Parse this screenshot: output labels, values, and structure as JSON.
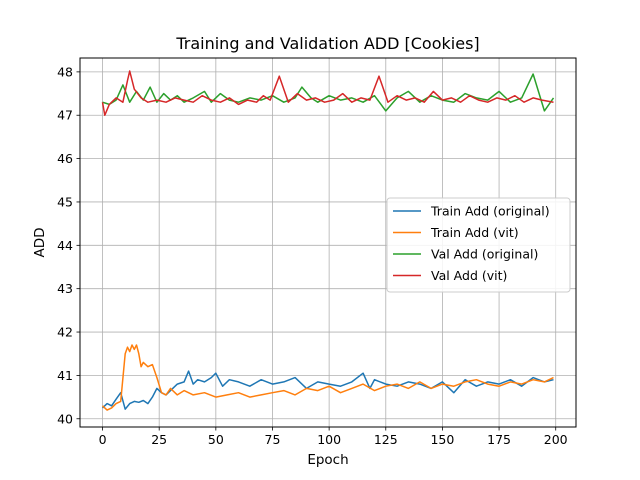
{
  "chart_data": {
    "type": "line",
    "title": "Training and Validation ADD [Cookies]",
    "xlabel": "Epoch",
    "ylabel": "ADD",
    "xlim": [
      -9.95,
      208.95
    ],
    "ylim": [
      39.81,
      48.32
    ],
    "xticks": [
      0,
      25,
      50,
      75,
      100,
      125,
      150,
      175,
      200
    ],
    "yticks": [
      40,
      41,
      42,
      43,
      44,
      45,
      46,
      47,
      48
    ],
    "grid": true,
    "legend_position": "center-right",
    "series": [
      {
        "name": "Train Add (original)",
        "color": "#1f77b4",
        "x": [
          0,
          2,
          4,
          6,
          8,
          10,
          12,
          14,
          16,
          18,
          20,
          22,
          24,
          26,
          28,
          30,
          33,
          36,
          38,
          40,
          42,
          45,
          48,
          50,
          53,
          56,
          60,
          65,
          70,
          75,
          80,
          85,
          90,
          95,
          100,
          105,
          110,
          115,
          118,
          120,
          125,
          130,
          135,
          140,
          145,
          150,
          155,
          160,
          165,
          170,
          175,
          180,
          185,
          190,
          195,
          199
        ],
        "y": [
          40.25,
          40.35,
          40.3,
          40.45,
          40.6,
          40.22,
          40.35,
          40.4,
          40.38,
          40.42,
          40.35,
          40.5,
          40.7,
          40.6,
          40.55,
          40.65,
          40.8,
          40.85,
          41.1,
          40.8,
          40.9,
          40.85,
          40.95,
          41.05,
          40.75,
          40.9,
          40.85,
          40.75,
          40.9,
          40.8,
          40.85,
          40.95,
          40.7,
          40.85,
          40.8,
          40.75,
          40.85,
          41.05,
          40.7,
          40.9,
          40.8,
          40.75,
          40.85,
          40.8,
          40.7,
          40.85,
          40.6,
          40.9,
          40.75,
          40.85,
          40.8,
          40.9,
          40.75,
          40.95,
          40.85,
          40.9
        ]
      },
      {
        "name": "Train Add (vit)",
        "color": "#ff7f0e",
        "x": [
          0,
          2,
          4,
          6,
          8,
          10,
          11,
          12,
          13,
          14,
          15,
          16,
          17,
          18,
          20,
          22,
          24,
          26,
          28,
          30,
          33,
          36,
          40,
          45,
          50,
          55,
          60,
          65,
          70,
          75,
          80,
          85,
          90,
          95,
          100,
          105,
          110,
          115,
          120,
          125,
          130,
          135,
          140,
          145,
          150,
          155,
          160,
          165,
          170,
          175,
          180,
          185,
          190,
          195,
          199
        ],
        "y": [
          40.3,
          40.2,
          40.25,
          40.35,
          40.4,
          41.5,
          41.65,
          41.55,
          41.7,
          41.6,
          41.7,
          41.5,
          41.2,
          41.3,
          41.2,
          41.25,
          40.95,
          40.6,
          40.55,
          40.7,
          40.55,
          40.65,
          40.55,
          40.6,
          40.5,
          40.55,
          40.6,
          40.5,
          40.55,
          40.6,
          40.65,
          40.55,
          40.7,
          40.65,
          40.75,
          40.6,
          40.7,
          40.8,
          40.65,
          40.75,
          40.8,
          40.7,
          40.85,
          40.7,
          40.8,
          40.75,
          40.85,
          40.9,
          40.8,
          40.75,
          40.85,
          40.8,
          40.9,
          40.85,
          40.95
        ]
      },
      {
        "name": "Val Add (original)",
        "color": "#2ca02c",
        "x": [
          0,
          3,
          6,
          9,
          12,
          15,
          18,
          21,
          24,
          27,
          30,
          33,
          36,
          40,
          45,
          48,
          52,
          56,
          60,
          65,
          70,
          75,
          80,
          85,
          88,
          92,
          95,
          100,
          105,
          110,
          115,
          120,
          125,
          130,
          135,
          140,
          145,
          150,
          155,
          160,
          165,
          170,
          175,
          180,
          185,
          190,
          195,
          199
        ],
        "y": [
          47.3,
          47.25,
          47.35,
          47.7,
          47.3,
          47.55,
          47.35,
          47.65,
          47.3,
          47.5,
          47.35,
          47.45,
          47.3,
          47.4,
          47.55,
          47.3,
          47.5,
          47.35,
          47.3,
          47.4,
          47.35,
          47.45,
          47.3,
          47.4,
          47.65,
          47.4,
          47.3,
          47.45,
          47.35,
          47.4,
          47.3,
          47.45,
          47.1,
          47.4,
          47.55,
          47.3,
          47.45,
          47.35,
          47.3,
          47.5,
          47.4,
          47.35,
          47.55,
          47.3,
          47.4,
          47.95,
          47.1,
          47.4
        ]
      },
      {
        "name": "Val Add (vit)",
        "color": "#d62728",
        "x": [
          0,
          1,
          3,
          6,
          9,
          11,
          12,
          14,
          17,
          20,
          24,
          28,
          32,
          36,
          40,
          44,
          48,
          52,
          56,
          60,
          64,
          68,
          71,
          74,
          78,
          82,
          86,
          90,
          94,
          98,
          102,
          106,
          110,
          114,
          118,
          122,
          126,
          130,
          134,
          138,
          142,
          146,
          150,
          154,
          158,
          162,
          166,
          170,
          174,
          178,
          182,
          186,
          190,
          194,
          199
        ],
        "y": [
          47.3,
          47.0,
          47.25,
          47.4,
          47.3,
          47.8,
          48.02,
          47.6,
          47.4,
          47.3,
          47.35,
          47.3,
          47.4,
          47.35,
          47.3,
          47.45,
          47.35,
          47.3,
          47.4,
          47.25,
          47.35,
          47.3,
          47.45,
          47.35,
          47.9,
          47.3,
          47.5,
          47.35,
          47.4,
          47.3,
          47.35,
          47.5,
          47.3,
          47.4,
          47.35,
          47.9,
          47.3,
          47.45,
          47.35,
          47.4,
          47.3,
          47.55,
          47.35,
          47.4,
          47.3,
          47.45,
          47.35,
          47.3,
          47.4,
          47.35,
          47.45,
          47.3,
          47.4,
          47.35,
          47.3
        ]
      }
    ]
  }
}
